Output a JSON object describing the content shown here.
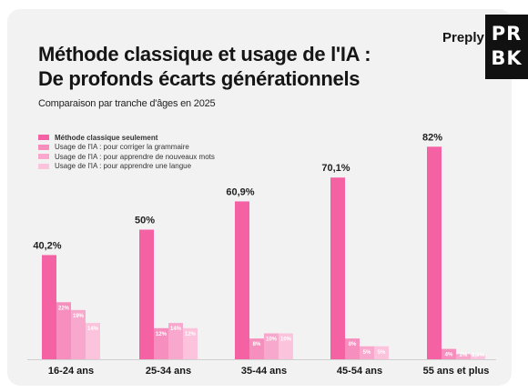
{
  "header": {
    "title_line1": "Méthode classique et usage de l'IA :",
    "title_line2": "De profonds écarts générationnels",
    "subtitle": "Comparaison par tranche d'âges en 2025",
    "brand": "Preply",
    "badge": "PRBK"
  },
  "colors": {
    "series": [
      "#f462a4",
      "#f68fbd",
      "#f8a8cc",
      "#fbc3dc"
    ],
    "label_main": "#222222",
    "label_small": "#ffffff"
  },
  "chart_data": {
    "type": "bar",
    "categories": [
      "16-24 ans",
      "25-34 ans",
      "35-44 ans",
      "45-54 ans",
      "55 ans et plus"
    ],
    "series": [
      {
        "name": "Méthode classique seulement",
        "values": [
          40.2,
          50,
          60.9,
          70.1,
          82
        ],
        "labels": [
          "40,2%",
          "50%",
          "60,9%",
          "70,1%",
          "82%"
        ]
      },
      {
        "name": "Usage de l'IA : pour corriger la grammaire",
        "values": [
          22,
          12,
          8,
          8,
          4
        ],
        "labels": [
          "22%",
          "12%",
          "8%",
          "8%",
          "4%"
        ]
      },
      {
        "name": "Usage de l'IA : pour apprendre de nouveaux mots",
        "values": [
          19,
          14,
          10,
          5,
          2
        ],
        "labels": [
          "19%",
          "14%",
          "10%",
          "5%",
          "2%"
        ]
      },
      {
        "name": "Usage de l'IA : pour apprendre une langue",
        "values": [
          14,
          12,
          10,
          5,
          1.5
        ],
        "labels": [
          "14%",
          "12%",
          "10%",
          "5%",
          "1,5%"
        ]
      }
    ],
    "ylim": [
      0,
      100
    ],
    "grid": false,
    "legend_position": "top-left"
  }
}
